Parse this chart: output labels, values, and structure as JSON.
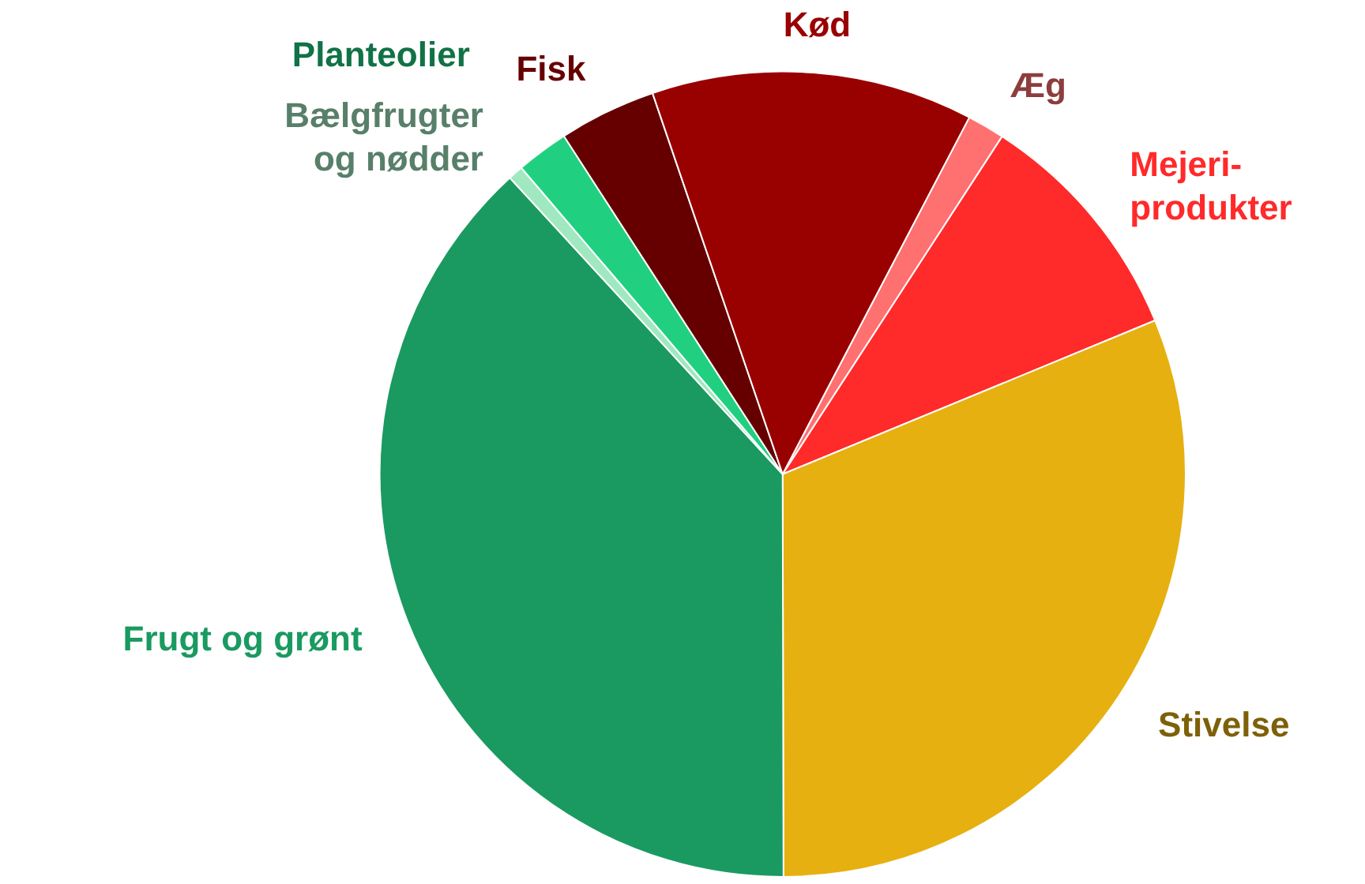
{
  "chart_data": {
    "type": "pie",
    "categories": [
      "Æg",
      "Mejeri-produkter",
      "Stivelse",
      "Frugt og grønt",
      "Bælgfrugter og nødder",
      "Planteolier",
      "Fisk",
      "Kød"
    ],
    "values": [
      1.5,
      9.6,
      31.2,
      38.2,
      0.6,
      2.1,
      3.9,
      12.9
    ],
    "colors": [
      "#ff7070",
      "#ff2a2a",
      "#e6b010",
      "#1a9a60",
      "#a0e8c0",
      "#20d080",
      "#660000",
      "#990000"
    ]
  }
}
